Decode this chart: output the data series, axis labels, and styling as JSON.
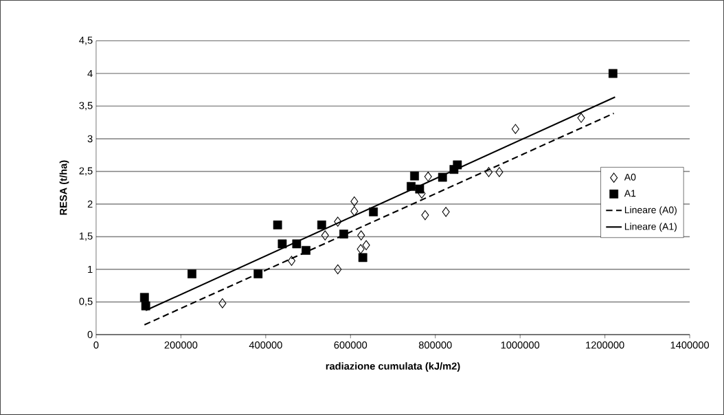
{
  "chart_data": {
    "type": "scatter",
    "xlabel": "radiazione cumulata (kJ/m2)",
    "ylabel": "RESA (t/ha)",
    "xlim": [
      0,
      1400000
    ],
    "ylim": [
      0,
      4.5
    ],
    "xticks": [
      0,
      200000,
      400000,
      600000,
      800000,
      1000000,
      1200000,
      1400000
    ],
    "yticks": [
      0,
      {
        "value": 0.5,
        "label": "0,5"
      },
      1,
      {
        "value": 1.5,
        "label": "1,5"
      },
      2,
      {
        "value": 2.5,
        "label": "2,5"
      },
      3,
      {
        "value": 3.5,
        "label": "3,5"
      },
      4,
      {
        "value": 4.5,
        "label": "4,5"
      }
    ],
    "grid": "y",
    "legend": "right",
    "series": [
      {
        "name": "A0",
        "marker": "diamond",
        "color": "#000000",
        "x": [
          298000,
          461000,
          540000,
          570000,
          570000,
          609000,
          609000,
          625000,
          637000,
          624000,
          776000,
          825000,
          783000,
          768000,
          926000,
          951000,
          989000,
          1144000
        ],
        "values": [
          0.48,
          1.13,
          1.52,
          1.73,
          1.0,
          2.04,
          1.89,
          1.52,
          1.37,
          1.31,
          1.83,
          1.88,
          2.42,
          2.16,
          2.49,
          2.49,
          3.15,
          3.32
        ]
      },
      {
        "name": "A1",
        "marker": "square",
        "color": "#000000",
        "x": [
          114000,
          117000,
          226000,
          382000,
          428000,
          439000,
          473000,
          495000,
          532000,
          584000,
          629000,
          654000,
          751000,
          743000,
          763000,
          817000,
          844000,
          852000,
          1219000
        ],
        "values": [
          0.57,
          0.44,
          0.93,
          0.93,
          1.68,
          1.39,
          1.39,
          1.29,
          1.68,
          1.54,
          1.18,
          1.88,
          2.43,
          2.27,
          2.23,
          2.41,
          2.53,
          2.6,
          4.0
        ]
      },
      {
        "name": "Lineare (A0)",
        "type": "line",
        "line_style": "dashed",
        "color": "#000000",
        "x": [
          114000,
          1221000
        ],
        "values": [
          0.15,
          3.39
        ]
      },
      {
        "name": "Lineare (A1)",
        "type": "line",
        "line_style": "solid",
        "color": "#000000",
        "x": [
          117000,
          1224000
        ],
        "values": [
          0.37,
          3.64
        ]
      }
    ]
  }
}
